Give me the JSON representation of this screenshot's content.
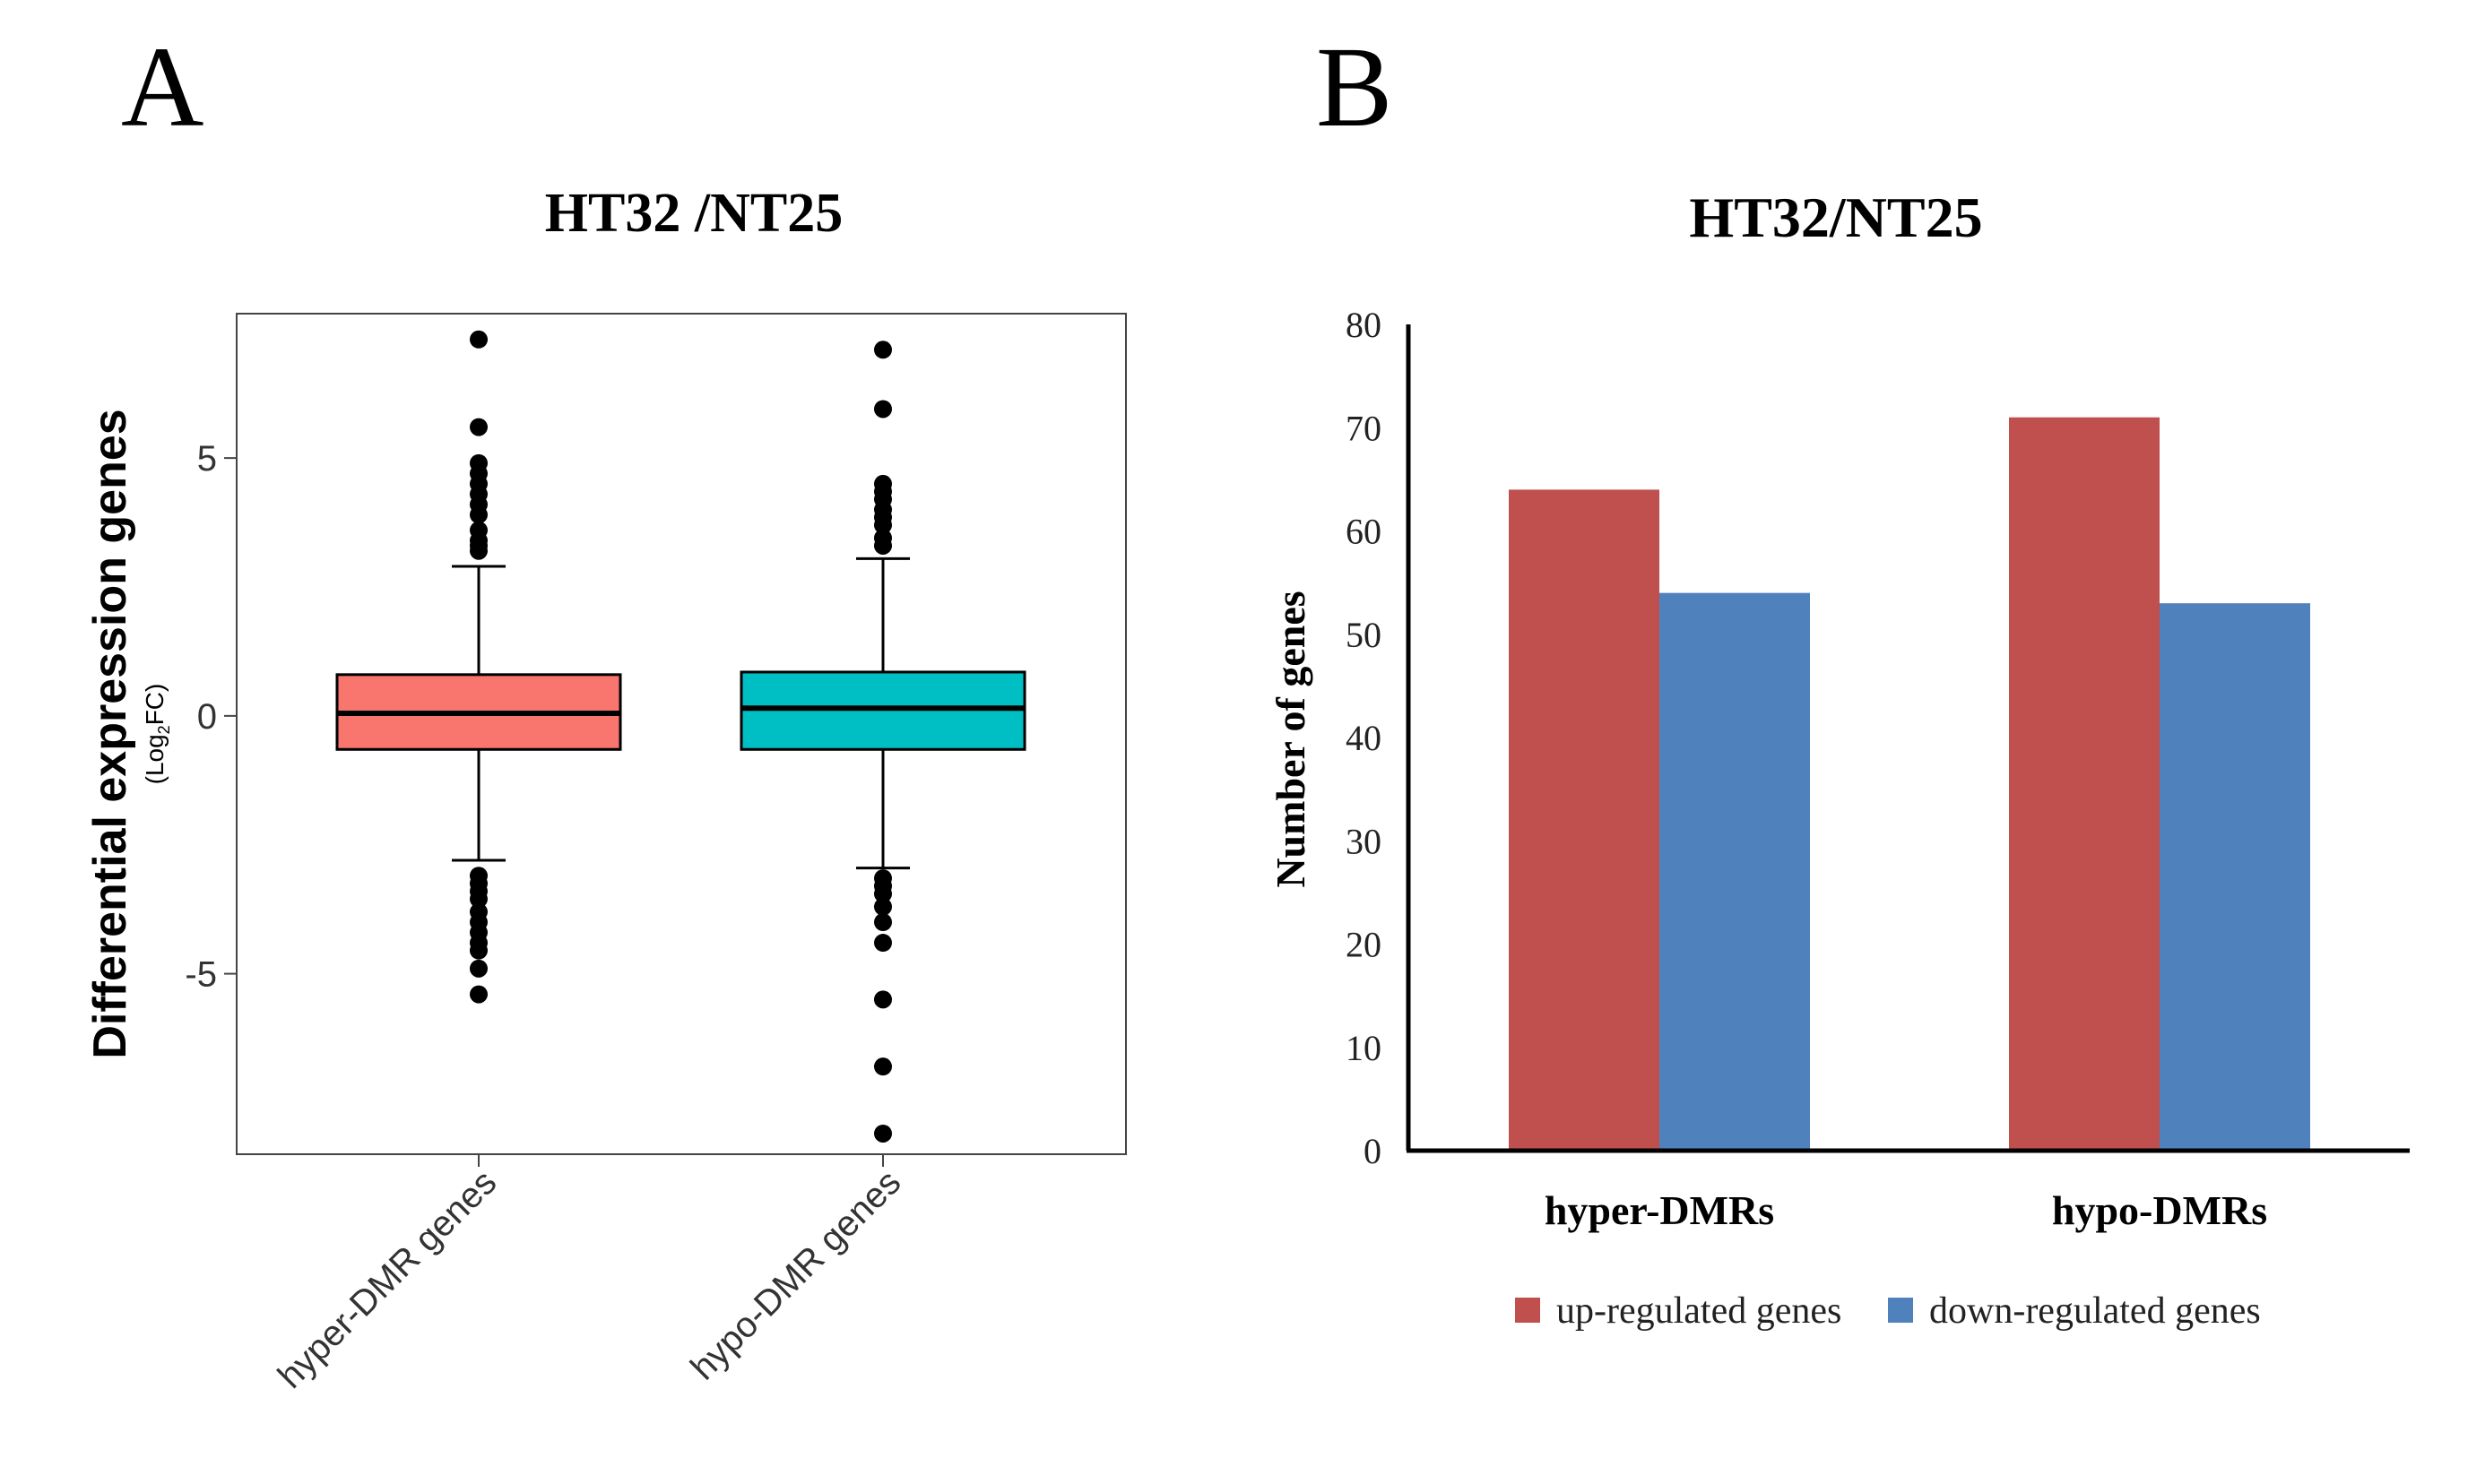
{
  "panels": {
    "a_label": "A",
    "b_label": "B"
  },
  "chart_data": [
    {
      "type": "box",
      "title": "HT32 /NT25",
      "ylabel": "Differential expression genes",
      "ylabel_sub_prefix": "(Log",
      "ylabel_sub_subscript": "2",
      "ylabel_sub_suffix": "FC)",
      "ylim": [
        -8.5,
        7.8
      ],
      "yticks": [
        5,
        0,
        -5
      ],
      "ytick_labels": [
        "5",
        "0",
        "-5"
      ],
      "categories": [
        "hyper-DMR genes",
        "hypo-DMR genes"
      ],
      "boxes": [
        {
          "name": "hyper-DMR genes",
          "color": "#f8766d",
          "q1": -0.65,
          "median": 0.05,
          "q3": 0.8,
          "whisker_low": -2.8,
          "whisker_high": 2.9,
          "outliers": [
            7.3,
            5.6,
            4.9,
            4.7,
            4.5,
            4.3,
            4.1,
            3.9,
            3.6,
            3.4,
            3.3,
            3.2,
            -3.1,
            -3.25,
            -3.4,
            -3.55,
            -3.8,
            -4.0,
            -4.2,
            -4.4,
            -4.55,
            -4.9,
            -5.4
          ]
        },
        {
          "name": "hypo-DMR genes",
          "color": "#00bfc4",
          "q1": -0.65,
          "median": 0.15,
          "q3": 0.85,
          "whisker_low": -2.95,
          "whisker_high": 3.05,
          "outliers": [
            7.1,
            5.95,
            4.5,
            4.35,
            4.2,
            4.0,
            3.85,
            3.7,
            3.45,
            3.3,
            -3.15,
            -3.3,
            -3.45,
            -3.7,
            -4.0,
            -4.4,
            -5.5,
            -6.8,
            -8.1
          ]
        }
      ]
    },
    {
      "type": "bar",
      "title": "HT32/NT25",
      "ylabel": "Number of genes",
      "ylim": [
        0,
        80
      ],
      "yticks": [
        0,
        10,
        20,
        30,
        40,
        50,
        60,
        70,
        80
      ],
      "ytick_labels": [
        "0",
        "10",
        "20",
        "30",
        "40",
        "50",
        "60",
        "70",
        "80"
      ],
      "categories": [
        "hyper-DMRs",
        "hypo-DMRs"
      ],
      "series": [
        {
          "name": "up-regulated genes",
          "color": "#c0504d",
          "values": [
            64,
            71
          ]
        },
        {
          "name": "down-regulated genes",
          "color": "#4f81bd",
          "values": [
            54,
            53
          ]
        }
      ],
      "legend": "bottom"
    }
  ]
}
